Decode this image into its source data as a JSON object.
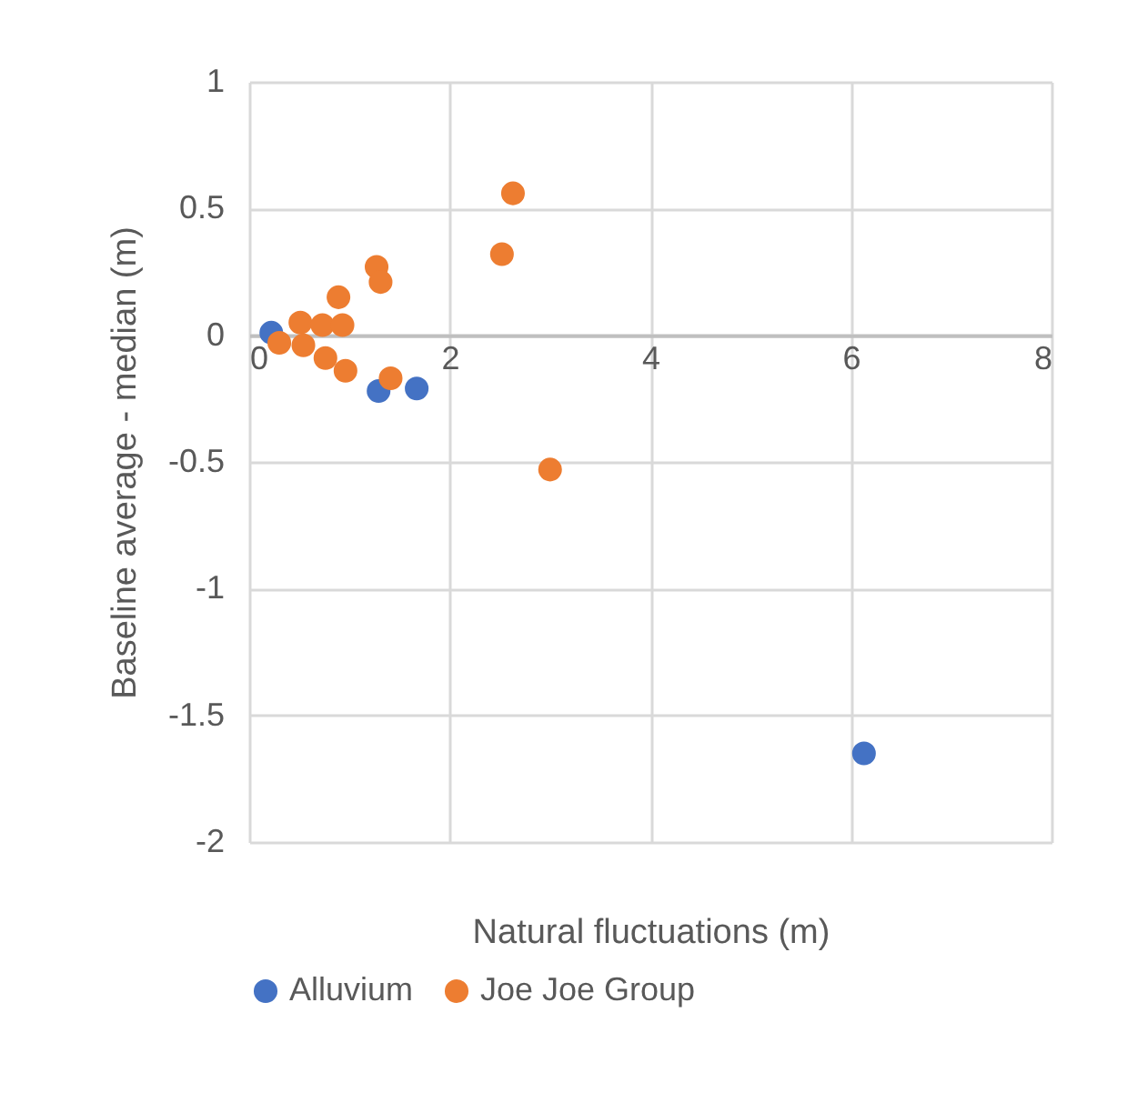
{
  "chart_data": {
    "type": "scatter",
    "xlabel": "Natural fluctuations (m)",
    "ylabel": "Baseline average - median (m)",
    "xlim": [
      0,
      8
    ],
    "xticks": [
      0,
      2,
      4,
      6,
      8
    ],
    "ylim": [
      -2,
      1
    ],
    "yticks": [
      -2,
      -1.5,
      -1,
      -0.5,
      0,
      0.5,
      1
    ],
    "grid": true,
    "legend": "bottom",
    "marker": "circle",
    "series": [
      {
        "name": "Alluvium",
        "color": "#4472c4",
        "x": [
          0.22,
          1.29,
          1.67,
          6.13
        ],
        "values": [
          0.01,
          -0.22,
          -0.21,
          -1.65
        ]
      },
      {
        "name": "Joe Joe Group",
        "color": "#ed7d31",
        "x": [
          2.63,
          2.52,
          1.27,
          1.31,
          0.89,
          0.51,
          0.73,
          0.93,
          0.3,
          0.54,
          0.76,
          0.96,
          1.41,
          3.0
        ],
        "values": [
          0.56,
          0.32,
          0.27,
          0.21,
          0.15,
          0.05,
          0.04,
          0.04,
          -0.03,
          -0.04,
          -0.09,
          -0.14,
          -0.17,
          -0.53
        ]
      }
    ]
  }
}
